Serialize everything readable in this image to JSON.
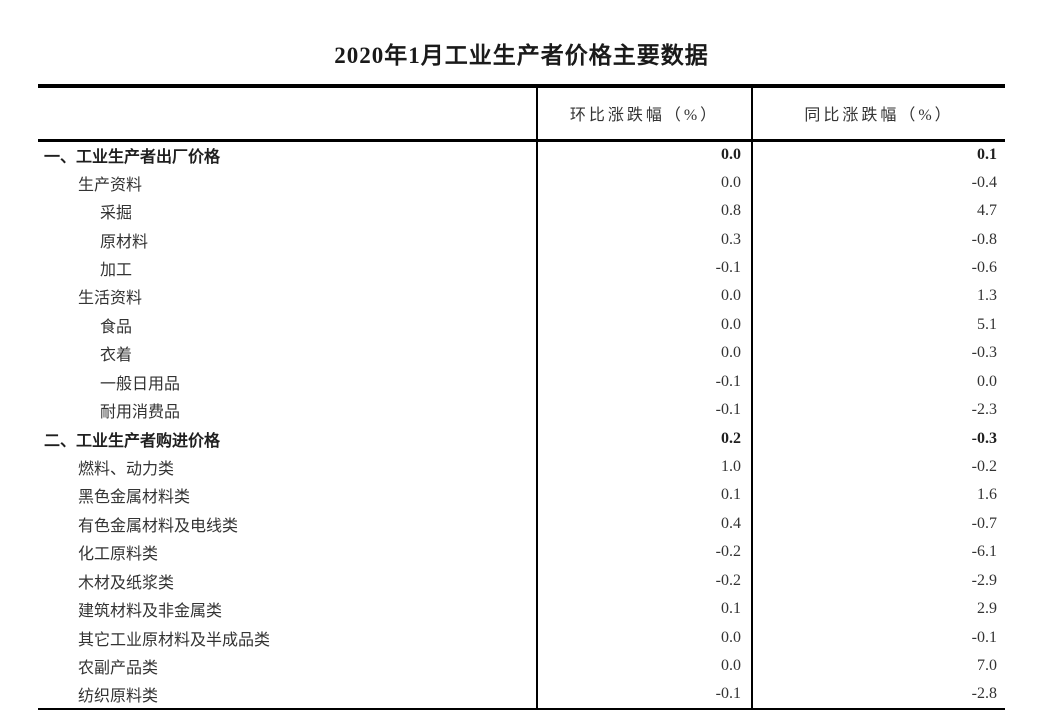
{
  "page": {
    "title": "2020年1月工业生产者价格主要数据"
  },
  "table": {
    "columns": {
      "mom": "环比涨跌幅（%）",
      "yoy": "同比涨跌幅（%）"
    },
    "rows": [
      {
        "label": "一、工业生产者出厂价格",
        "indent": 0,
        "bold": true,
        "mom": "0.0",
        "yoy": "0.1"
      },
      {
        "label": "生产资料",
        "indent": 1,
        "bold": false,
        "mom": "0.0",
        "yoy": "-0.4"
      },
      {
        "label": "采掘",
        "indent": 2,
        "bold": false,
        "mom": "0.8",
        "yoy": "4.7"
      },
      {
        "label": "原材料",
        "indent": 2,
        "bold": false,
        "mom": "0.3",
        "yoy": "-0.8"
      },
      {
        "label": "加工",
        "indent": 2,
        "bold": false,
        "mom": "-0.1",
        "yoy": "-0.6"
      },
      {
        "label": "生活资料",
        "indent": 1,
        "bold": false,
        "mom": "0.0",
        "yoy": "1.3"
      },
      {
        "label": "食品",
        "indent": 2,
        "bold": false,
        "mom": "0.0",
        "yoy": "5.1"
      },
      {
        "label": "衣着",
        "indent": 2,
        "bold": false,
        "mom": "0.0",
        "yoy": "-0.3"
      },
      {
        "label": "一般日用品",
        "indent": 2,
        "bold": false,
        "mom": "-0.1",
        "yoy": "0.0"
      },
      {
        "label": "耐用消费品",
        "indent": 2,
        "bold": false,
        "mom": "-0.1",
        "yoy": "-2.3"
      },
      {
        "label": "二、工业生产者购进价格",
        "indent": 0,
        "bold": true,
        "mom": "0.2",
        "yoy": "-0.3"
      },
      {
        "label": "燃料、动力类",
        "indent": 1,
        "bold": false,
        "mom": "1.0",
        "yoy": "-0.2"
      },
      {
        "label": "黑色金属材料类",
        "indent": 1,
        "bold": false,
        "mom": "0.1",
        "yoy": "1.6"
      },
      {
        "label": "有色金属材料及电线类",
        "indent": 1,
        "bold": false,
        "mom": "0.4",
        "yoy": "-0.7"
      },
      {
        "label": "化工原料类",
        "indent": 1,
        "bold": false,
        "mom": "-0.2",
        "yoy": "-6.1"
      },
      {
        "label": "木材及纸浆类",
        "indent": 1,
        "bold": false,
        "mom": "-0.2",
        "yoy": "-2.9"
      },
      {
        "label": "建筑材料及非金属类",
        "indent": 1,
        "bold": false,
        "mom": "0.1",
        "yoy": "2.9"
      },
      {
        "label": "其它工业原材料及半成品类",
        "indent": 1,
        "bold": false,
        "mom": "0.0",
        "yoy": "-0.1"
      },
      {
        "label": "农副产品类",
        "indent": 1,
        "bold": false,
        "mom": "0.0",
        "yoy": "7.0"
      },
      {
        "label": "纺织原料类",
        "indent": 1,
        "bold": false,
        "mom": "-0.1",
        "yoy": "-2.8"
      }
    ]
  },
  "colors": {
    "background": "#ffffff",
    "border": "#000000",
    "text": "#333333",
    "bold_text": "#1f1f1f"
  }
}
